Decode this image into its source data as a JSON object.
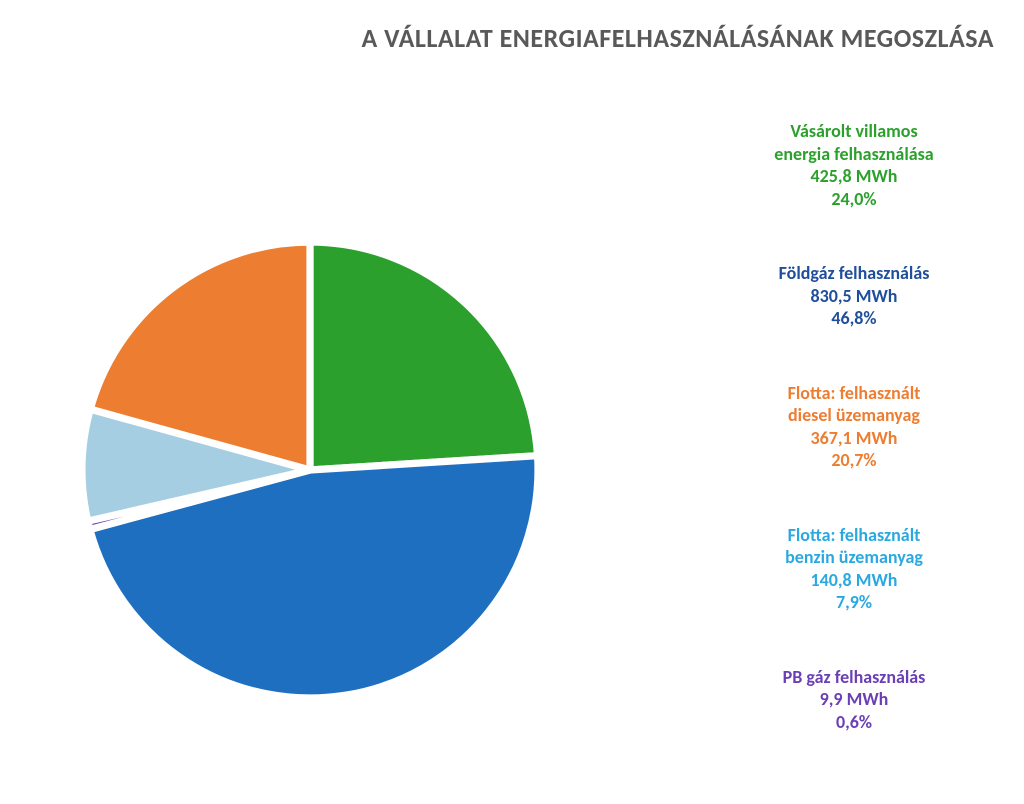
{
  "title": "A VÁLLALAT ENERGIAFELHASZNÁLÁSÁNAK MEGOSZLÁSA",
  "title_color": "#595959",
  "title_fontsize": 26,
  "chart": {
    "type": "pie",
    "background_color": "#ffffff",
    "slice_border_color": "#ffffff",
    "slice_border_width": 3,
    "start_angle_deg": 0,
    "direction": "clockwise",
    "slices": [
      {
        "key": "villamos",
        "label_lines": [
          "Vásárolt villamos",
          "energia felhasználása",
          "425,8 MWh",
          "24,0%"
        ],
        "value_mwh": 425.8,
        "percent": 24.0,
        "color": "#2ca02c",
        "label_color": "#2ca02c"
      },
      {
        "key": "foldgaz",
        "label_lines": [
          "Földgáz felhasználás",
          "830,5 MWh",
          "46,8%"
        ],
        "value_mwh": 830.5,
        "percent": 46.8,
        "color": "#1f6fc1",
        "label_color": "#1f4e9c"
      },
      {
        "key": "pb",
        "label_lines": [
          "PB gáz felhasználás",
          "9,9 MWh",
          "0,6%"
        ],
        "value_mwh": 9.9,
        "percent": 0.6,
        "color": "#6a3fb5",
        "label_color": "#6a3fb5"
      },
      {
        "key": "benzin",
        "label_lines": [
          "Flotta: felhasznált",
          "benzin üzemanyag",
          "140,8 MWh",
          "7,9%"
        ],
        "value_mwh": 140.8,
        "percent": 7.9,
        "color": "#a6cee3",
        "label_color": "#2aa9e0"
      },
      {
        "key": "diesel",
        "label_lines": [
          "Flotta: felhasznált",
          "diesel üzemanyag",
          "367,1 MWh",
          "20,7%"
        ],
        "value_mwh": 367.1,
        "percent": 20.7,
        "color": "#ed7d31",
        "label_color": "#ed7d31"
      }
    ],
    "legend_order": [
      "villamos",
      "foldgaz",
      "diesel",
      "benzin",
      "pb"
    ],
    "legend_fontsize": 18,
    "legend_fontweight": 700
  }
}
